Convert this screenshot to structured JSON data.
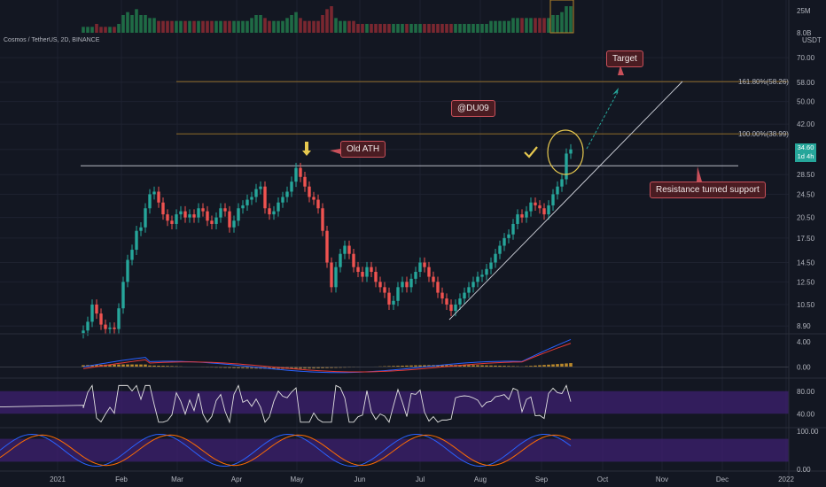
{
  "symbol_line": "Cosmos / TetherUS, 2D, BINANCE",
  "currency": "USDT",
  "last_price": "34.60",
  "countdown": "1d 4h",
  "watermark": "@DU09",
  "annotations": {
    "target": "Target",
    "old_ath": "Old ATH",
    "support": "Resistance turned support"
  },
  "fib_labels": [
    "161.80%(58.26)",
    "100.00%(38.99)"
  ],
  "volume_axis": [
    "25M",
    "8.0B"
  ],
  "price_axis": [
    "70.00",
    "58.00",
    "50.00",
    "42.00",
    "34.60",
    "28.50",
    "24.50",
    "20.50",
    "17.50",
    "14.50",
    "12.50",
    "10.50",
    "8.90"
  ],
  "macd_axis": [
    "4.00",
    "0.00"
  ],
  "rsi_axis": [
    "80.00",
    "40.00"
  ],
  "stoch_axis": [
    "100.00",
    "0.00"
  ],
  "time_axis": [
    "2021",
    "Feb",
    "Mar",
    "Apr",
    "May",
    "Jun",
    "Jul",
    "Aug",
    "Sep",
    "Oct",
    "Nov",
    "Dec",
    "2022"
  ],
  "colors": {
    "up": "#26a69a",
    "down": "#ef5350",
    "fib": "#b8872a",
    "macd": "#2962ff",
    "signal": "#e53935",
    "rsi": "#e0e0e0",
    "band": "#3b1f6b"
  },
  "chart_data": {
    "type": "candlestick",
    "title": "Cosmos / TetherUS, 2D, BINANCE",
    "x_ticks": [
      "2021",
      "Feb",
      "Mar",
      "Apr",
      "May",
      "Jun",
      "Jul",
      "Aug",
      "Sep",
      "Oct",
      "Nov",
      "Dec",
      "2022"
    ],
    "y_scale": "log",
    "ylim": [
      8.5,
      75
    ],
    "levels": {
      "old_ath_resistance": 30.5,
      "fib_100": 38.99,
      "fib_161_8": 58.26
    },
    "closes": [
      8.6,
      9.2,
      10.5,
      9.8,
      9.0,
      8.7,
      8.8,
      8.7,
      10.2,
      12.5,
      14.8,
      16.0,
      18.5,
      19.0,
      22.0,
      24.5,
      25.0,
      23.0,
      21.0,
      20.0,
      19.5,
      21.0,
      21.5,
      20.5,
      21.0,
      20.5,
      22.0,
      21.5,
      20.0,
      19.5,
      20.5,
      22.0,
      21.5,
      19.0,
      20.0,
      22.0,
      22.5,
      23.5,
      24.0,
      25.5,
      26.0,
      22.0,
      21.0,
      21.5,
      23.0,
      24.0,
      25.0,
      27.0,
      30.0,
      28.0,
      26.0,
      24.0,
      23.5,
      22.0,
      18.5,
      14.5,
      12.0,
      14.0,
      15.5,
      16.5,
      15.5,
      14.0,
      13.5,
      13.0,
      14.0,
      13.5,
      12.5,
      12.0,
      11.5,
      10.5,
      10.8,
      12.0,
      12.5,
      12.0,
      12.8,
      13.5,
      14.5,
      14.0,
      13.0,
      12.5,
      11.5,
      11.0,
      10.5,
      10.0,
      10.5,
      11.0,
      11.5,
      12.0,
      12.5,
      13.0,
      13.2,
      13.8,
      14.5,
      15.5,
      16.5,
      17.5,
      18.0,
      19.5,
      21.0,
      20.5,
      21.5,
      23.0,
      22.5,
      22.0,
      21.0,
      22.5,
      24.5,
      26.0,
      27.5,
      33.5,
      34.6
    ],
    "volume": [
      2,
      2,
      2,
      3,
      2,
      2,
      2,
      2,
      3,
      6,
      7,
      6,
      8,
      6,
      6,
      5,
      5,
      4,
      4,
      4,
      4,
      4,
      4,
      4,
      4,
      4,
      4,
      4,
      4,
      4,
      4,
      4,
      4,
      4,
      4,
      4,
      4,
      4,
      5,
      6,
      6,
      5,
      4,
      4,
      4,
      4,
      5,
      6,
      7,
      5,
      4,
      4,
      4,
      4,
      6,
      8,
      9,
      5,
      4,
      4,
      4,
      4,
      3,
      3,
      3,
      3,
      3,
      3,
      3,
      3,
      3,
      3,
      3,
      3,
      3,
      3,
      3,
      3,
      3,
      3,
      3,
      3,
      3,
      3,
      3,
      3,
      3,
      3,
      3,
      3,
      3,
      3,
      4,
      4,
      4,
      4,
      4,
      5,
      5,
      5,
      5,
      5,
      5,
      5,
      5,
      5,
      6,
      6,
      7,
      9,
      9
    ],
    "macd": {
      "range": [
        -1.5,
        5
      ],
      "final_macd": 4.6,
      "final_signal": 3.8
    },
    "rsi": {
      "range": [
        20,
        100
      ],
      "band": [
        40,
        80
      ],
      "final": 75
    },
    "stoch_rsi": {
      "range": [
        0,
        100
      ],
      "band": [
        20,
        80
      ],
      "final": 90
    }
  }
}
